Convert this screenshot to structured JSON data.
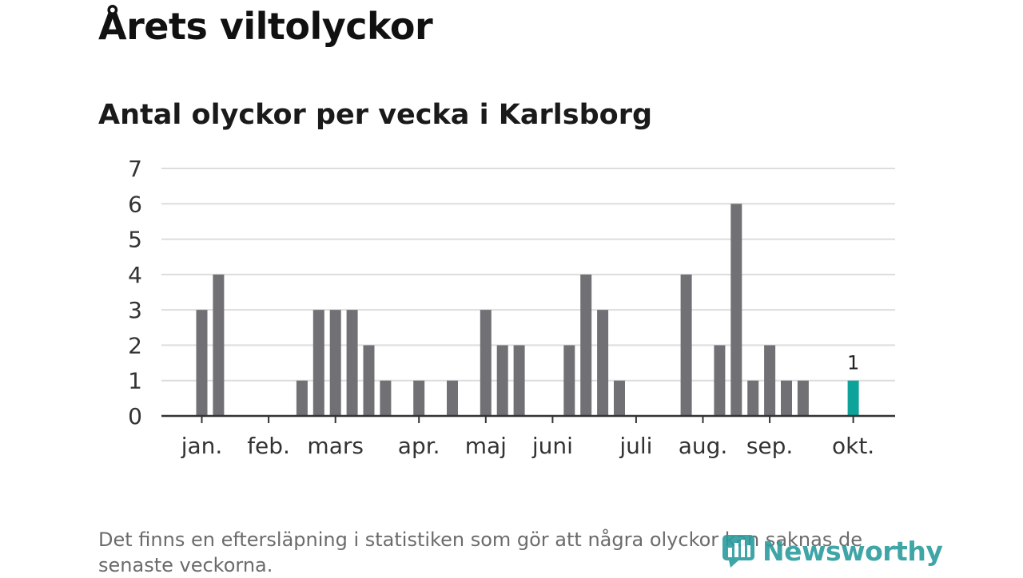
{
  "title": "Årets viltolyckor",
  "subtitle": "Antal olyckor per vecka i Karlsborg",
  "footnote": "Det finns en eftersläpning i statistiken som gör att några olyckor kan saknas de senaste veckorna.",
  "logo": {
    "text": "Newsworthy",
    "icon": "bar-chart-logo-icon"
  },
  "colors": {
    "bar": "#717075",
    "highlight": "#0ea39a",
    "grid": "#dddddd",
    "axis": "#333333",
    "text": "#333333"
  },
  "chart_data": {
    "type": "bar",
    "ylim": [
      0,
      7
    ],
    "yticks": [
      0,
      1,
      2,
      3,
      4,
      5,
      6,
      7
    ],
    "grid": true,
    "xticks": [
      {
        "label": "jan.",
        "week": 1
      },
      {
        "label": "feb.",
        "week": 5
      },
      {
        "label": "mars",
        "week": 9
      },
      {
        "label": "apr.",
        "week": 14
      },
      {
        "label": "maj",
        "week": 18
      },
      {
        "label": "juni",
        "week": 22
      },
      {
        "label": "juli",
        "week": 27
      },
      {
        "label": "aug.",
        "week": 31
      },
      {
        "label": "sep.",
        "week": 35
      },
      {
        "label": "okt.",
        "week": 40
      }
    ],
    "weeks": [
      1,
      2,
      3,
      4,
      5,
      6,
      7,
      8,
      9,
      10,
      11,
      12,
      13,
      14,
      15,
      16,
      17,
      18,
      19,
      20,
      21,
      22,
      23,
      24,
      25,
      26,
      27,
      28,
      29,
      30,
      31,
      32,
      33,
      34,
      35,
      36,
      37,
      38,
      39,
      40
    ],
    "values": [
      3,
      4,
      0,
      0,
      0,
      0,
      1,
      3,
      3,
      3,
      2,
      1,
      0,
      1,
      0,
      1,
      0,
      3,
      2,
      2,
      0,
      0,
      2,
      4,
      3,
      1,
      0,
      0,
      0,
      4,
      0,
      2,
      6,
      1,
      2,
      1,
      1,
      0,
      0,
      1
    ],
    "highlight_week": 40,
    "highlight_label": "1"
  }
}
